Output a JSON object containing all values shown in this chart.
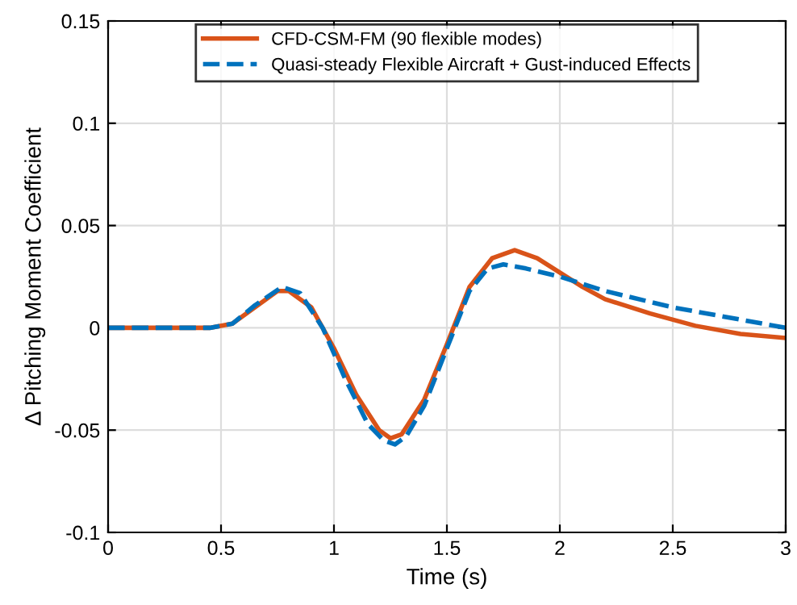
{
  "chart_data": {
    "type": "line",
    "xlabel": "Time (s)",
    "ylabel": "Δ Pitching Moment Coefficient",
    "xlim": [
      0,
      3
    ],
    "ylim": [
      -0.1,
      0.15
    ],
    "xticks": [
      0,
      0.5,
      1,
      1.5,
      2,
      2.5,
      3
    ],
    "yticks": [
      -0.1,
      -0.05,
      0,
      0.05,
      0.1,
      0.15
    ],
    "grid": true,
    "legend": "top",
    "series": [
      {
        "name": "CFD-CSM-FM (90 flexible modes)",
        "color": "#d95319",
        "line_style": "solid",
        "x": [
          0,
          0.45,
          0.55,
          0.65,
          0.75,
          0.8,
          0.9,
          1.0,
          1.1,
          1.2,
          1.25,
          1.3,
          1.4,
          1.5,
          1.6,
          1.7,
          1.8,
          1.9,
          2.0,
          2.1,
          2.2,
          2.4,
          2.6,
          2.8,
          3.0
        ],
        "values": [
          0,
          0,
          0.002,
          0.01,
          0.018,
          0.018,
          0.01,
          -0.01,
          -0.033,
          -0.05,
          -0.054,
          -0.052,
          -0.035,
          -0.008,
          0.02,
          0.034,
          0.038,
          0.034,
          0.027,
          0.02,
          0.014,
          0.007,
          0.001,
          -0.003,
          -0.005
        ]
      },
      {
        "name": "Quasi-steady Flexible Aircraft + Gust-induced Effects",
        "color": "#0072bd",
        "line_style": "dashed",
        "x": [
          0,
          0.45,
          0.55,
          0.65,
          0.77,
          0.85,
          0.95,
          1.05,
          1.15,
          1.22,
          1.27,
          1.32,
          1.4,
          1.5,
          1.6,
          1.68,
          1.75,
          1.85,
          2.0,
          2.2,
          2.5,
          2.8,
          3.0
        ],
        "values": [
          0,
          0,
          0.002,
          0.011,
          0.02,
          0.017,
          0.0,
          -0.025,
          -0.047,
          -0.055,
          -0.057,
          -0.053,
          -0.038,
          -0.01,
          0.018,
          0.029,
          0.031,
          0.029,
          0.025,
          0.018,
          0.01,
          0.004,
          0.0
        ]
      }
    ]
  }
}
